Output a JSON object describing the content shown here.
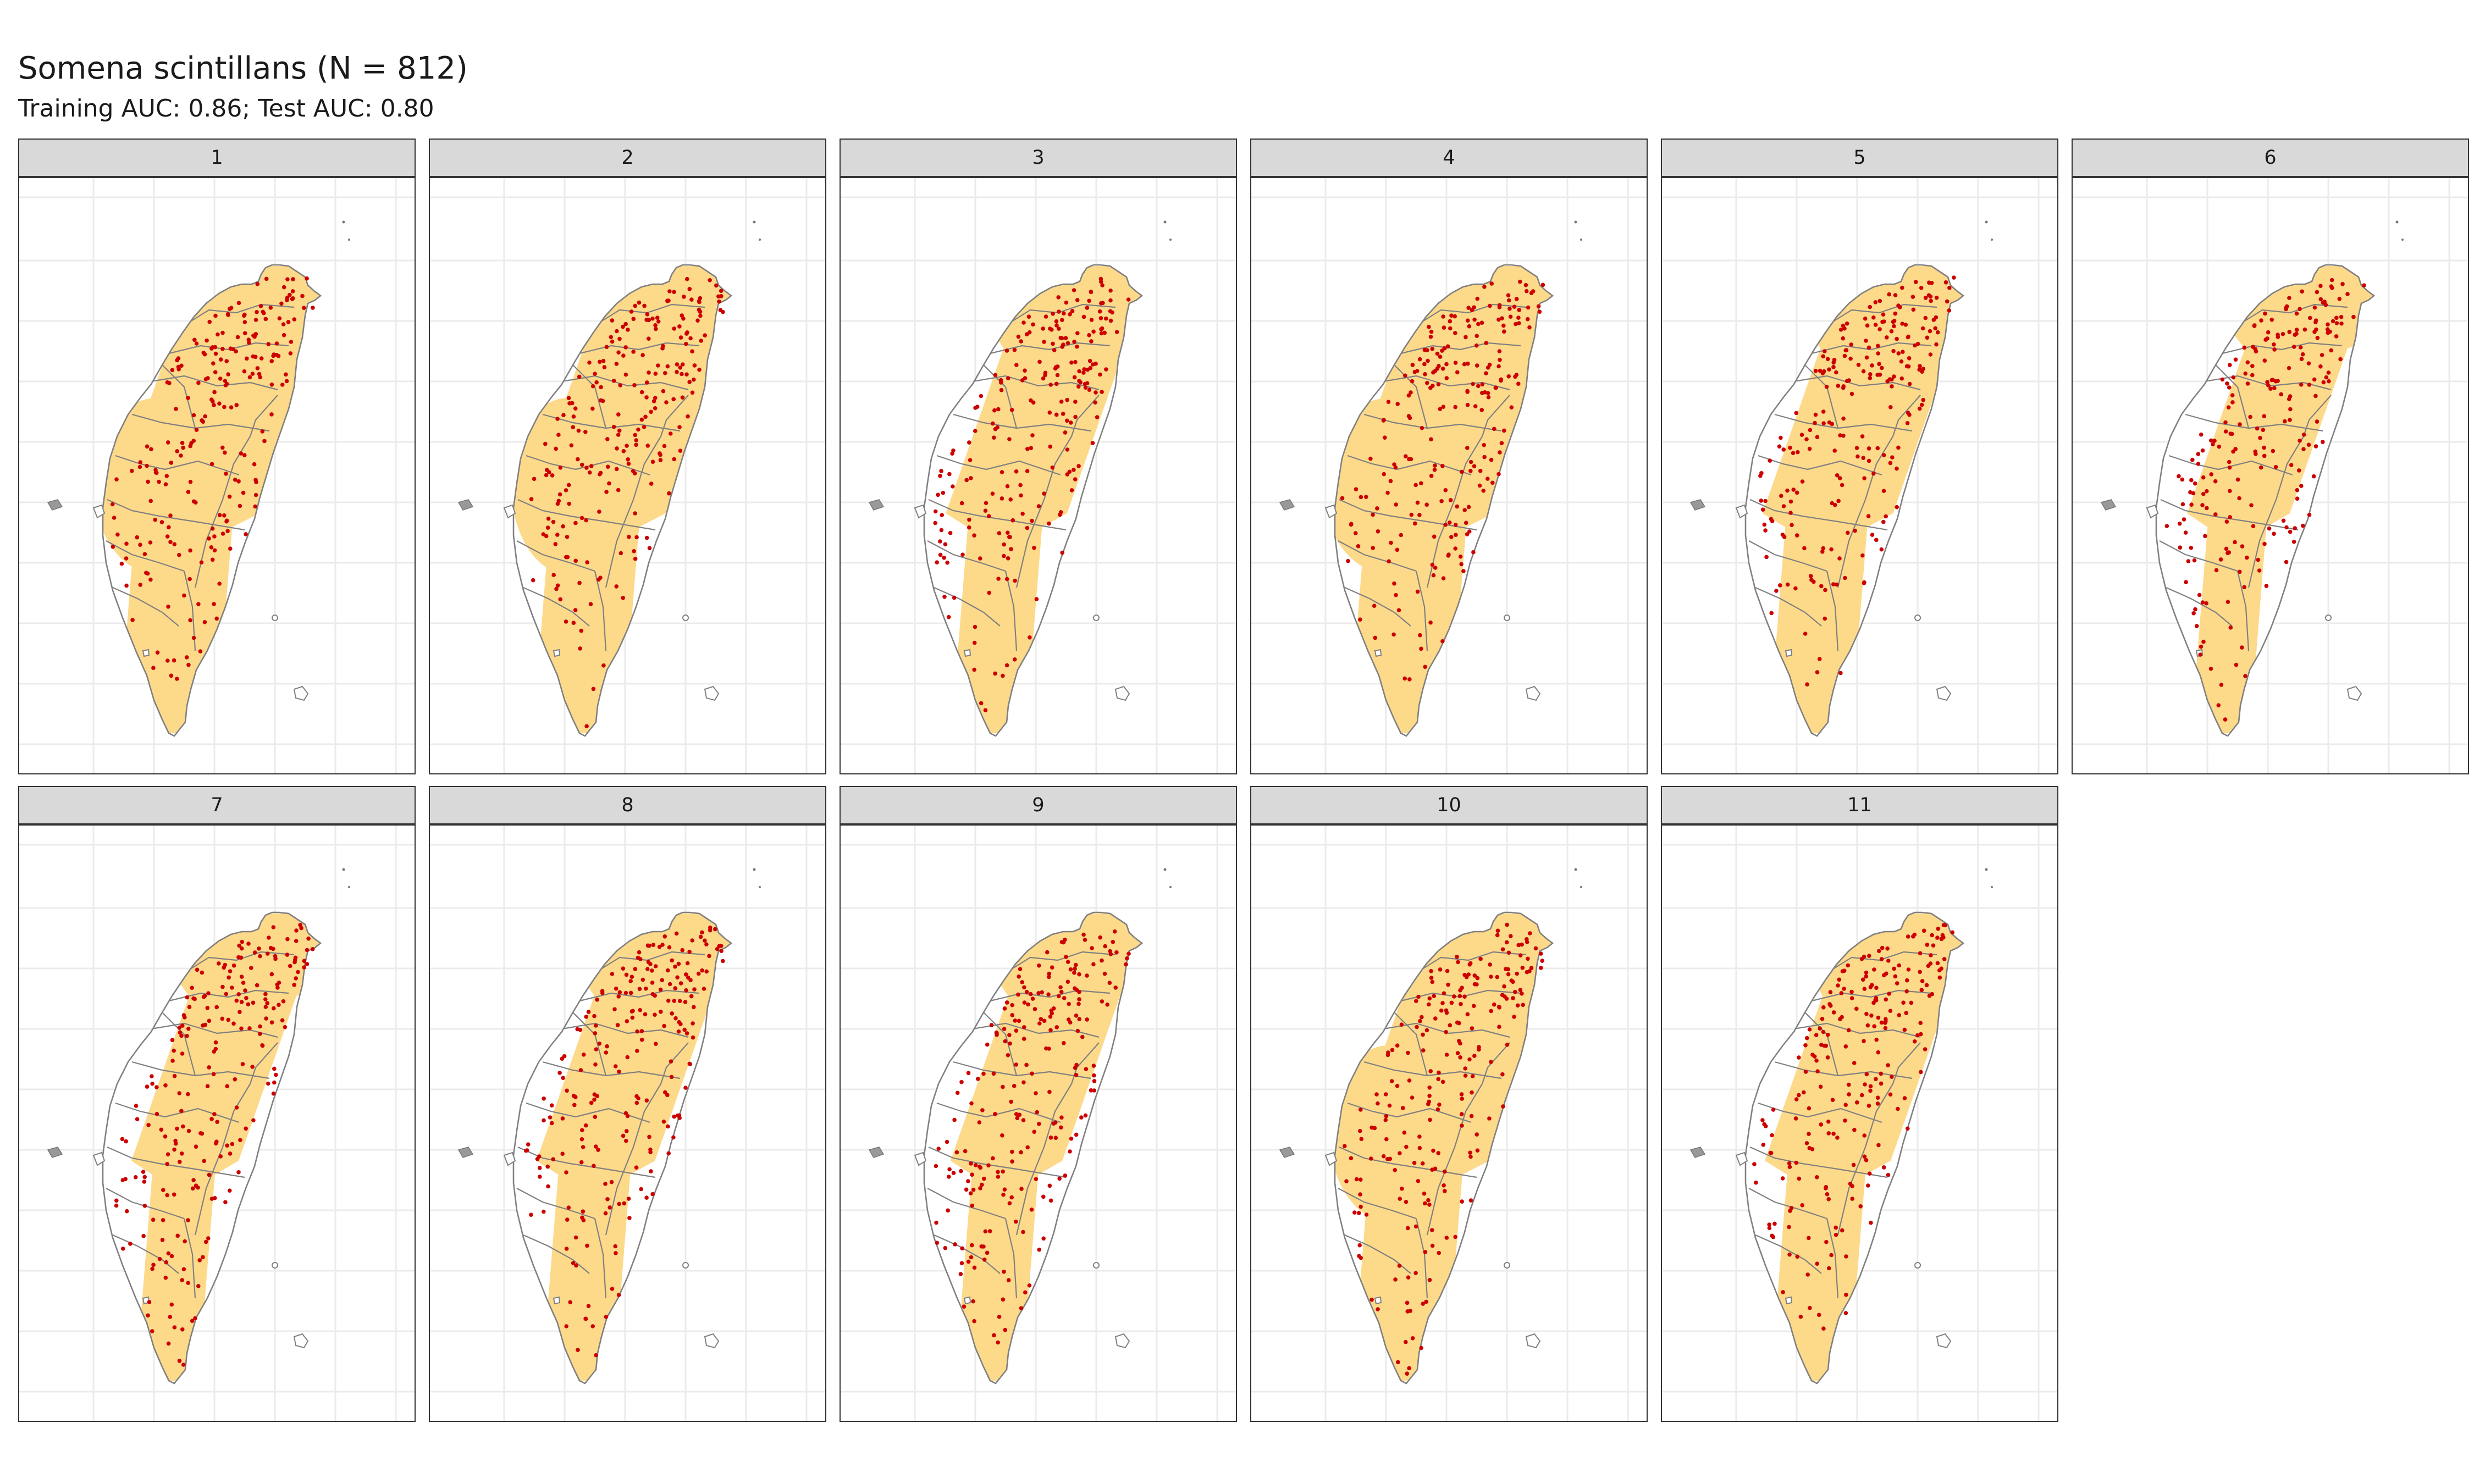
{
  "title": "Somena scintillans (N = 812)",
  "subtitle": "Training AUC: 0.86; Test AUC: 0.80",
  "colors": {
    "suitable_habitat": "#fdd98a",
    "occurrence_points": "#cc0000",
    "county_borders": "#808080",
    "gridlines": "#ebebeb",
    "strip_background": "#d9d9d9"
  },
  "panels": [
    {
      "label": "1",
      "suitable_extent": 0.95,
      "occurrence_density": 0.75
    },
    {
      "label": "2",
      "suitable_extent": 0.85,
      "occurrence_density": 0.75
    },
    {
      "label": "3",
      "suitable_extent": 0.65,
      "occurrence_density": 0.75
    },
    {
      "label": "4",
      "suitable_extent": 1.0,
      "occurrence_density": 0.75
    },
    {
      "label": "5",
      "suitable_extent": 0.75,
      "occurrence_density": 0.75
    },
    {
      "label": "6",
      "suitable_extent": 0.45,
      "occurrence_density": 0.75
    },
    {
      "label": "7",
      "suitable_extent": 0.5,
      "occurrence_density": 0.75
    },
    {
      "label": "8",
      "suitable_extent": 0.62,
      "occurrence_density": 0.75
    },
    {
      "label": "9",
      "suitable_extent": 0.55,
      "occurrence_density": 0.75
    },
    {
      "label": "10",
      "suitable_extent": 0.9,
      "occurrence_density": 0.75
    },
    {
      "label": "11",
      "suitable_extent": 0.7,
      "occurrence_density": 0.75
    }
  ]
}
